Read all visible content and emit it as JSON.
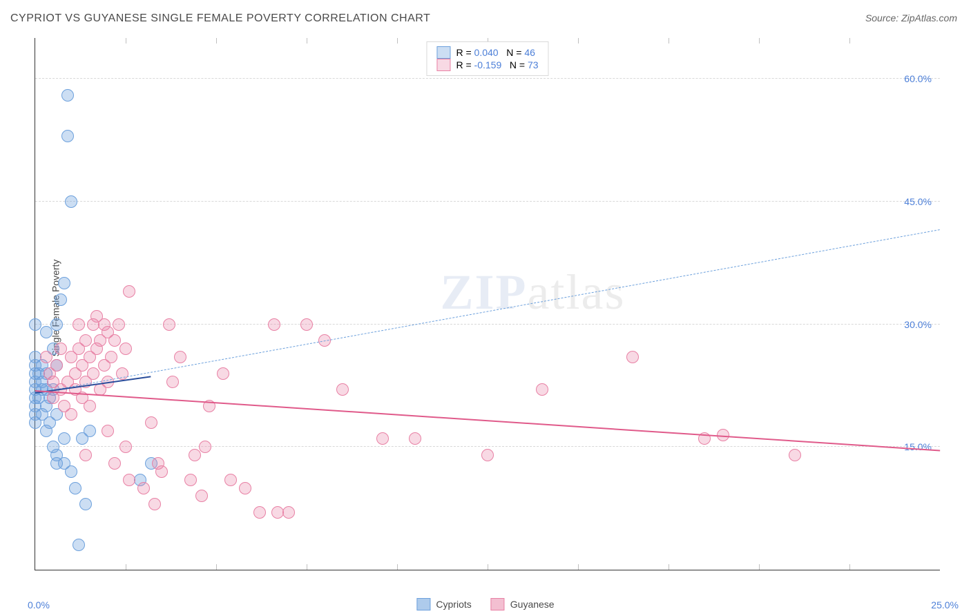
{
  "title": "CYPRIOT VS GUYANESE SINGLE FEMALE POVERTY CORRELATION CHART",
  "source": "Source: ZipAtlas.com",
  "ylabel": "Single Female Poverty",
  "watermark_a": "ZIP",
  "watermark_b": "atlas",
  "x_origin_label": "0.0%",
  "x_max_label": "25.0%",
  "chart": {
    "type": "scatter",
    "xlim": [
      0,
      25
    ],
    "ylim": [
      0,
      65
    ],
    "y_ticks": [
      15,
      30,
      45,
      60
    ],
    "y_tick_labels": [
      "15.0%",
      "30.0%",
      "45.0%",
      "60.0%"
    ],
    "x_tick_positions": [
      2.5,
      5,
      7.5,
      10,
      12.5,
      15,
      17.5,
      20,
      22.5
    ],
    "background_color": "#ffffff",
    "grid_color": "#d8d8d8",
    "axis_color": "#333333",
    "series": [
      {
        "name": "Cypriots",
        "color_fill": "rgba(108,160,220,0.35)",
        "color_stroke": "#6ca0dc",
        "marker_size": 16,
        "R": "0.040",
        "N": "46",
        "trend_solid": {
          "x1": 0,
          "y1": 21.5,
          "x2": 3.2,
          "y2": 23.5,
          "color": "#2a4d9b",
          "width": 2.5
        },
        "trend_dashed": {
          "x1": 0,
          "y1": 21.5,
          "x2": 25,
          "y2": 41.5,
          "color": "#6ca0dc",
          "width": 1
        },
        "points": [
          [
            0.0,
            19
          ],
          [
            0.0,
            20
          ],
          [
            0.0,
            21
          ],
          [
            0.0,
            22
          ],
          [
            0.0,
            23
          ],
          [
            0.0,
            24
          ],
          [
            0.0,
            25
          ],
          [
            0.0,
            26
          ],
          [
            0.0,
            18
          ],
          [
            0.0,
            30
          ],
          [
            0.1,
            24
          ],
          [
            0.1,
            21
          ],
          [
            0.2,
            19
          ],
          [
            0.2,
            22
          ],
          [
            0.2,
            23
          ],
          [
            0.2,
            25
          ],
          [
            0.3,
            17
          ],
          [
            0.3,
            20
          ],
          [
            0.3,
            22
          ],
          [
            0.3,
            24
          ],
          [
            0.3,
            29
          ],
          [
            0.4,
            18
          ],
          [
            0.4,
            21
          ],
          [
            0.5,
            15
          ],
          [
            0.5,
            22
          ],
          [
            0.5,
            27
          ],
          [
            0.6,
            13
          ],
          [
            0.6,
            14
          ],
          [
            0.6,
            19
          ],
          [
            0.6,
            25
          ],
          [
            0.6,
            30
          ],
          [
            0.7,
            33
          ],
          [
            0.8,
            13
          ],
          [
            0.8,
            16
          ],
          [
            0.8,
            35
          ],
          [
            0.9,
            58
          ],
          [
            0.9,
            53
          ],
          [
            1.0,
            45
          ],
          [
            1.0,
            12
          ],
          [
            1.1,
            10
          ],
          [
            1.2,
            3
          ],
          [
            1.3,
            16
          ],
          [
            1.4,
            8
          ],
          [
            1.5,
            17
          ],
          [
            2.9,
            11
          ],
          [
            3.2,
            13
          ]
        ]
      },
      {
        "name": "Guyanese",
        "color_fill": "rgba(232,128,164,0.30)",
        "color_stroke": "#e880a4",
        "marker_size": 16,
        "R": "-0.159",
        "N": "73",
        "trend_solid": {
          "x1": 0,
          "y1": 21.8,
          "x2": 25,
          "y2": 14.5,
          "color": "#e05a8a",
          "width": 2.5
        },
        "points": [
          [
            0.3,
            26
          ],
          [
            0.4,
            24
          ],
          [
            0.5,
            21
          ],
          [
            0.5,
            23
          ],
          [
            0.6,
            25
          ],
          [
            0.7,
            22
          ],
          [
            0.7,
            27
          ],
          [
            0.8,
            20
          ],
          [
            0.9,
            23
          ],
          [
            1.0,
            26
          ],
          [
            1.0,
            19
          ],
          [
            1.1,
            22
          ],
          [
            1.1,
            24
          ],
          [
            1.2,
            27
          ],
          [
            1.2,
            30
          ],
          [
            1.3,
            25
          ],
          [
            1.3,
            21
          ],
          [
            1.4,
            23
          ],
          [
            1.4,
            28
          ],
          [
            1.4,
            14
          ],
          [
            1.5,
            26
          ],
          [
            1.5,
            20
          ],
          [
            1.6,
            30
          ],
          [
            1.6,
            24
          ],
          [
            1.7,
            27
          ],
          [
            1.7,
            31
          ],
          [
            1.8,
            22
          ],
          [
            1.8,
            28
          ],
          [
            1.9,
            25
          ],
          [
            1.9,
            30
          ],
          [
            2.0,
            23
          ],
          [
            2.0,
            29
          ],
          [
            2.0,
            17
          ],
          [
            2.1,
            26
          ],
          [
            2.2,
            28
          ],
          [
            2.2,
            13
          ],
          [
            2.3,
            30
          ],
          [
            2.4,
            24
          ],
          [
            2.5,
            27
          ],
          [
            2.5,
            15
          ],
          [
            2.6,
            11
          ],
          [
            2.6,
            34
          ],
          [
            3.0,
            10
          ],
          [
            3.2,
            18
          ],
          [
            3.3,
            8
          ],
          [
            3.4,
            13
          ],
          [
            3.5,
            12
          ],
          [
            3.7,
            30
          ],
          [
            3.8,
            23
          ],
          [
            4.0,
            26
          ],
          [
            4.3,
            11
          ],
          [
            4.4,
            14
          ],
          [
            4.6,
            9
          ],
          [
            4.7,
            15
          ],
          [
            4.8,
            20
          ],
          [
            5.2,
            24
          ],
          [
            5.4,
            11
          ],
          [
            5.8,
            10
          ],
          [
            6.2,
            7
          ],
          [
            6.6,
            30
          ],
          [
            6.7,
            7
          ],
          [
            7.0,
            7
          ],
          [
            7.5,
            30
          ],
          [
            8.0,
            28
          ],
          [
            8.5,
            22
          ],
          [
            9.6,
            16
          ],
          [
            10.5,
            16
          ],
          [
            12.5,
            14
          ],
          [
            14.0,
            22
          ],
          [
            16.5,
            26
          ],
          [
            18.5,
            16
          ],
          [
            21.0,
            14
          ],
          [
            19.0,
            16.5
          ]
        ]
      }
    ]
  },
  "bottom_legend": [
    {
      "label": "Cypriots",
      "fill": "rgba(108,160,220,0.55)",
      "stroke": "#6ca0dc"
    },
    {
      "label": "Guyanese",
      "fill": "rgba(232,128,164,0.50)",
      "stroke": "#e880a4"
    }
  ]
}
